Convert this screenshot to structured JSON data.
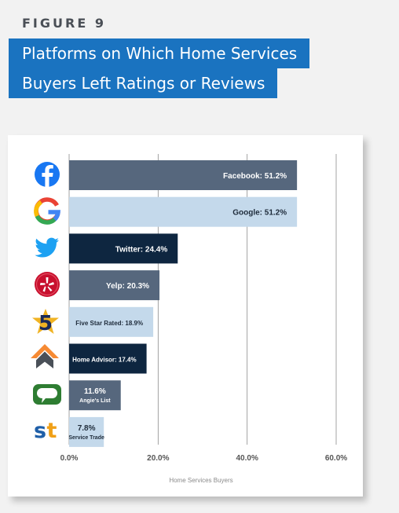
{
  "figure_label": "FIGURE 9",
  "title_lines": [
    "Platforms on Which Home Services",
    "Buyers Left Ratings or Reviews"
  ],
  "colors": {
    "title_bg": "#1a73c0",
    "steel": "#56677d",
    "light_blue": "#c4d9eb",
    "navy": "#0e2640"
  },
  "chart_data": {
    "type": "bar",
    "orientation": "horizontal",
    "title": "",
    "xlabel": "Home Services Buyers",
    "ylabel": "",
    "xlim": [
      0,
      60
    ],
    "xticks": [
      "0.0%",
      "20.0%",
      "40.0%",
      "60.0%"
    ],
    "grid": true,
    "categories": [
      "Facebook",
      "Google",
      "Twitter",
      "Yelp",
      "Five Star Rated",
      "Home Advisor",
      "Angie's List",
      "Service Trade"
    ],
    "values": [
      51.2,
      51.2,
      24.4,
      20.3,
      18.9,
      17.4,
      11.6,
      7.8
    ],
    "data_labels": [
      "Facebook: 51.2%",
      "Google: 51.2%",
      "Twitter: 24.4%",
      "Yelp: 20.3%",
      "Five Star Rated: 18.9%",
      "Home Advisor: 17.4%",
      [
        "11.6%",
        "Angie's List"
      ],
      [
        "7.8%",
        "Service Trade"
      ]
    ],
    "bar_colors": [
      "steel",
      "light_blue",
      "navy",
      "steel",
      "light_blue",
      "navy",
      "steel",
      "light_blue"
    ],
    "icons": [
      "facebook-icon",
      "google-icon",
      "twitter-icon",
      "yelp-icon",
      "five-star-rated-icon",
      "home-advisor-icon",
      "angies-list-icon",
      "service-trade-icon"
    ]
  }
}
